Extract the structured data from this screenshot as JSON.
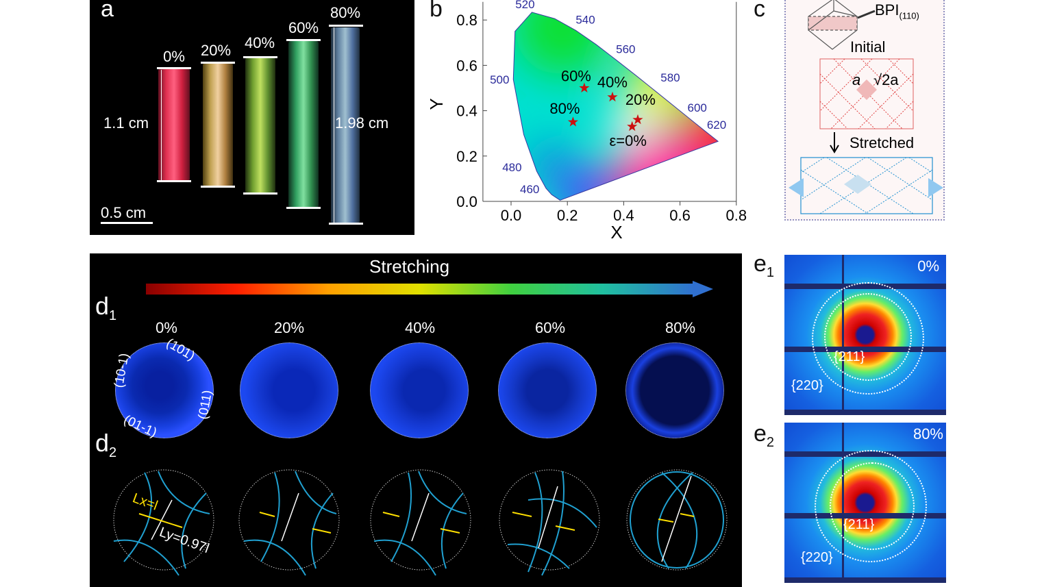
{
  "panel_a": {
    "label": "a",
    "strains": [
      "0%",
      "20%",
      "40%",
      "60%",
      "80%"
    ],
    "length_initial": "1.1 cm",
    "length_final": "1.98 cm",
    "scale_bar": "0.5 cm"
  },
  "chart_data": {
    "type": "scatter",
    "label": "b",
    "title": "",
    "xlabel": "X",
    "ylabel": "Y",
    "xlim": [
      -0.1,
      0.8
    ],
    "ylim": [
      0.0,
      0.88
    ],
    "xticks": [
      "0.0",
      "0.2",
      "0.4",
      "0.6",
      "0.8"
    ],
    "yticks": [
      "0.0",
      "0.2",
      "0.4",
      "0.6",
      "0.8"
    ],
    "grid": false,
    "points": [
      {
        "label": "ε=0%",
        "x": 0.43,
        "y": 0.33
      },
      {
        "label": "20%",
        "x": 0.45,
        "y": 0.36
      },
      {
        "label": "40%",
        "x": 0.36,
        "y": 0.46
      },
      {
        "label": "60%",
        "x": 0.26,
        "y": 0.5
      },
      {
        "label": "80%",
        "x": 0.22,
        "y": 0.35
      }
    ],
    "wavelength_labels": [
      {
        "nm": "460",
        "x": 0.144,
        "y": 0.03
      },
      {
        "nm": "480",
        "x": 0.091,
        "y": 0.133
      },
      {
        "nm": "500",
        "x": 0.008,
        "y": 0.538
      },
      {
        "nm": "520",
        "x": 0.074,
        "y": 0.834
      },
      {
        "nm": "540",
        "x": 0.23,
        "y": 0.754
      },
      {
        "nm": "560",
        "x": 0.373,
        "y": 0.624
      },
      {
        "nm": "580",
        "x": 0.512,
        "y": 0.487
      },
      {
        "nm": "600",
        "x": 0.627,
        "y": 0.372
      },
      {
        "nm": "620",
        "x": 0.691,
        "y": 0.308
      }
    ],
    "locus": [
      [
        0.174,
        0.005
      ],
      [
        0.144,
        0.03
      ],
      [
        0.124,
        0.058
      ],
      [
        0.091,
        0.133
      ],
      [
        0.045,
        0.295
      ],
      [
        0.008,
        0.538
      ],
      [
        0.014,
        0.75
      ],
      [
        0.074,
        0.834
      ],
      [
        0.155,
        0.806
      ],
      [
        0.23,
        0.754
      ],
      [
        0.302,
        0.692
      ],
      [
        0.373,
        0.624
      ],
      [
        0.444,
        0.555
      ],
      [
        0.512,
        0.487
      ],
      [
        0.627,
        0.372
      ],
      [
        0.691,
        0.308
      ],
      [
        0.735,
        0.265
      ]
    ],
    "label_color": "#2a2a9a",
    "star_color": "#cc1010"
  },
  "panel_c": {
    "label": "c",
    "bpi": "BPI",
    "bpi_sub": "(110)",
    "initial": "Initial",
    "a": "a",
    "sqrt2a": "√2a",
    "stretched": "Stretched"
  },
  "panel_d": {
    "title": "Stretching",
    "d1_label": "d",
    "d1_sub": "1",
    "d2_label": "d",
    "d2_sub": "2",
    "strains": [
      "0%",
      "20%",
      "40%",
      "60%",
      "80%"
    ],
    "planes": [
      "(101)",
      "(10-1)",
      "(011)",
      "(01-1)"
    ],
    "lx": "Lx=l",
    "ly": "Ly=0.97l"
  },
  "panel_e": {
    "e1_label": "e",
    "e1_sub": "1",
    "e1_strain": "0%",
    "e2_label": "e",
    "e2_sub": "2",
    "e2_strain": "80%",
    "ring_211": "{211}",
    "ring_220": "{220}"
  }
}
